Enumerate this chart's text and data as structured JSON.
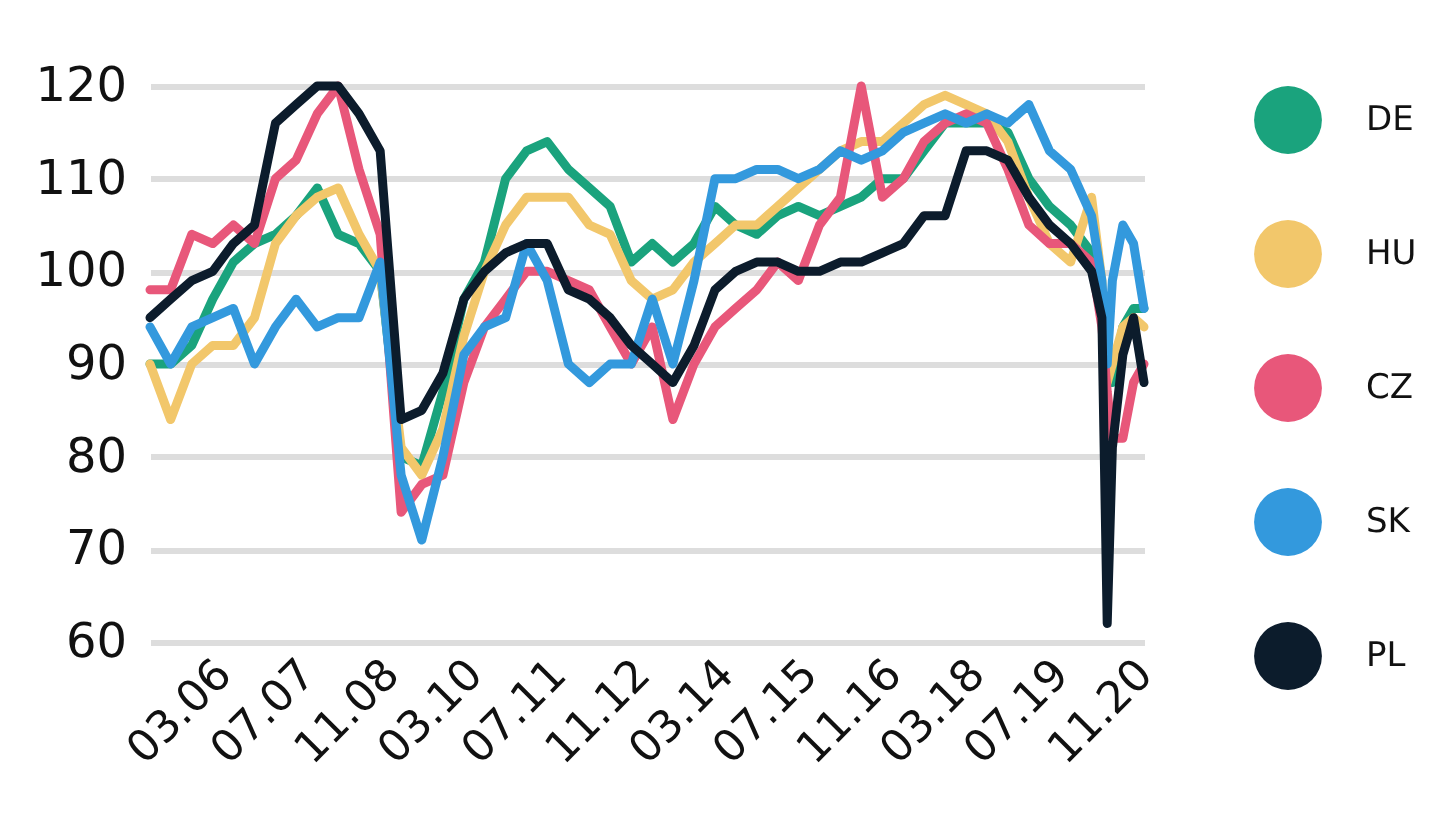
{
  "chart_data": {
    "type": "line",
    "x": [
      "2005-01",
      "2005-05",
      "2005-09",
      "2006-01",
      "2006-05",
      "2006-09",
      "2007-01",
      "2007-05",
      "2007-09",
      "2008-01",
      "2008-05",
      "2008-09",
      "2009-01",
      "2009-05",
      "2009-09",
      "2010-01",
      "2010-05",
      "2010-09",
      "2011-01",
      "2011-05",
      "2011-09",
      "2012-01",
      "2012-05",
      "2012-09",
      "2013-01",
      "2013-05",
      "2013-09",
      "2014-01",
      "2014-05",
      "2014-09",
      "2015-01",
      "2015-05",
      "2015-09",
      "2016-01",
      "2016-05",
      "2016-09",
      "2017-01",
      "2017-05",
      "2017-09",
      "2018-01",
      "2018-05",
      "2018-09",
      "2019-01",
      "2019-05",
      "2019-09",
      "2020-01",
      "2020-03",
      "2020-04",
      "2020-05",
      "2020-07",
      "2020-09",
      "2020-11"
    ],
    "series": [
      {
        "name": "DE",
        "color": "#1aa37d",
        "values": [
          90,
          90,
          92,
          97,
          101,
          103,
          104,
          106,
          109,
          104,
          103,
          100,
          80,
          79,
          87,
          97,
          101,
          110,
          113,
          114,
          111,
          109,
          107,
          101,
          103,
          101,
          103,
          107,
          105,
          104,
          106,
          107,
          106,
          107,
          108,
          110,
          110,
          113,
          116,
          116,
          116,
          115,
          110,
          107,
          105,
          102,
          95,
          88,
          88,
          94,
          96,
          96
        ]
      },
      {
        "name": "HU",
        "color": "#f2c76b",
        "values": [
          90,
          84,
          90,
          92,
          92,
          95,
          103,
          106,
          108,
          109,
          104,
          100,
          81,
          78,
          83,
          93,
          100,
          105,
          108,
          108,
          108,
          105,
          104,
          99,
          97,
          98,
          101,
          103,
          105,
          105,
          107,
          109,
          111,
          113,
          114,
          114,
          116,
          118,
          119,
          118,
          117,
          114,
          108,
          103,
          101,
          108,
          99,
          88,
          90,
          94,
          95,
          94
        ]
      },
      {
        "name": "CZ",
        "color": "#e8577a",
        "values": [
          98,
          98,
          104,
          103,
          105,
          103,
          110,
          112,
          117,
          120,
          111,
          104,
          74,
          77,
          78,
          88,
          94,
          97,
          100,
          100,
          99,
          98,
          94,
          90,
          94,
          84,
          90,
          94,
          96,
          98,
          101,
          99,
          105,
          108,
          120,
          108,
          110,
          114,
          116,
          117,
          116,
          111,
          105,
          103,
          103,
          101,
          94,
          87,
          82,
          82,
          88,
          90
        ]
      },
      {
        "name": "SK",
        "color": "#3399dd",
        "values": [
          94,
          90,
          94,
          95,
          96,
          90,
          94,
          97,
          94,
          95,
          95,
          101,
          78,
          71,
          80,
          91,
          94,
          95,
          103,
          99,
          90,
          88,
          90,
          90,
          97,
          90,
          99,
          110,
          110,
          111,
          111,
          110,
          111,
          113,
          112,
          113,
          115,
          116,
          117,
          116,
          117,
          116,
          118,
          113,
          111,
          106,
          99,
          90,
          99,
          105,
          103,
          96
        ]
      },
      {
        "name": "PL",
        "color": "#0c1c2c",
        "values": [
          95,
          97,
          99,
          100,
          103,
          105,
          116,
          118,
          120,
          120,
          117,
          113,
          84,
          85,
          89,
          97,
          100,
          102,
          103,
          103,
          98,
          97,
          95,
          92,
          90,
          88,
          92,
          98,
          100,
          101,
          101,
          100,
          100,
          101,
          101,
          102,
          103,
          106,
          106,
          113,
          113,
          112,
          108,
          105,
          103,
          100,
          95,
          62,
          81,
          91,
          95,
          88
        ]
      }
    ],
    "xlim": [
      "2005-01",
      "2020-11"
    ],
    "xticks": [
      {
        "value": "2006-03",
        "label": "03.06"
      },
      {
        "value": "2007-07",
        "label": "07.07"
      },
      {
        "value": "2008-11",
        "label": "11.08"
      },
      {
        "value": "2010-03",
        "label": "03.10"
      },
      {
        "value": "2011-07",
        "label": "07.11"
      },
      {
        "value": "2012-11",
        "label": "11.12"
      },
      {
        "value": "2014-03",
        "label": "03.14"
      },
      {
        "value": "2015-07",
        "label": "07.15"
      },
      {
        "value": "2016-11",
        "label": "11.16"
      },
      {
        "value": "2018-03",
        "label": "03.18"
      },
      {
        "value": "2019-07",
        "label": "07.19"
      },
      {
        "value": "2020-11",
        "label": "11.20"
      }
    ],
    "ylim": [
      60,
      120
    ],
    "yticks": [
      60,
      70,
      80,
      90,
      100,
      110,
      120
    ],
    "grid": "y",
    "legend": "right",
    "line_style": "solid",
    "marker": "none"
  }
}
